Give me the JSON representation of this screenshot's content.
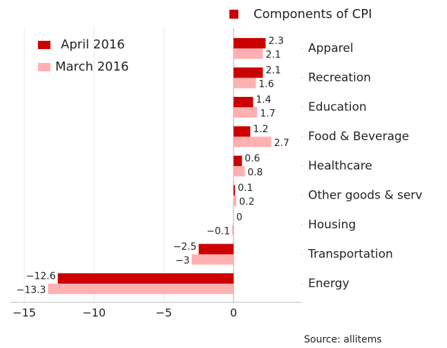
{
  "chart_data": {
    "type": "barh",
    "title": "Components of CPI",
    "source": "Source: allitems",
    "categories": [
      "Apparel",
      "Recreation",
      "Education",
      "Food & Beverage",
      "Healthcare",
      "Other goods & serv",
      "Housing",
      "Transportation",
      "Energy"
    ],
    "series": [
      {
        "name": "April 2016",
        "color": "#cc0000",
        "values": [
          2.3,
          2.1,
          1.4,
          1.2,
          0.6,
          0.1,
          0,
          -2.5,
          -12.6
        ],
        "value_labels": [
          "2.3",
          "2.1",
          "1.4",
          "1.2",
          "0.6",
          "0.1",
          "0",
          "−2.5",
          "−12.6"
        ]
      },
      {
        "name": "March 2016",
        "color": "#ffb0b0",
        "values": [
          2.1,
          1.6,
          1.7,
          2.7,
          0.8,
          0.2,
          -0.1,
          -3,
          -13.3
        ],
        "value_labels": [
          "2.1",
          "1.6",
          "1.7",
          "2.7",
          "0.8",
          "0.2",
          "−0.1",
          "−3",
          "−13.3"
        ]
      }
    ],
    "xlim": [
      -16,
      4.9
    ],
    "xticks": [
      {
        "value": -15,
        "label": "−15"
      },
      {
        "value": -10,
        "label": "−10"
      },
      {
        "value": -5,
        "label": "−5"
      },
      0
    ],
    "grid": true,
    "legend": "upper left"
  }
}
